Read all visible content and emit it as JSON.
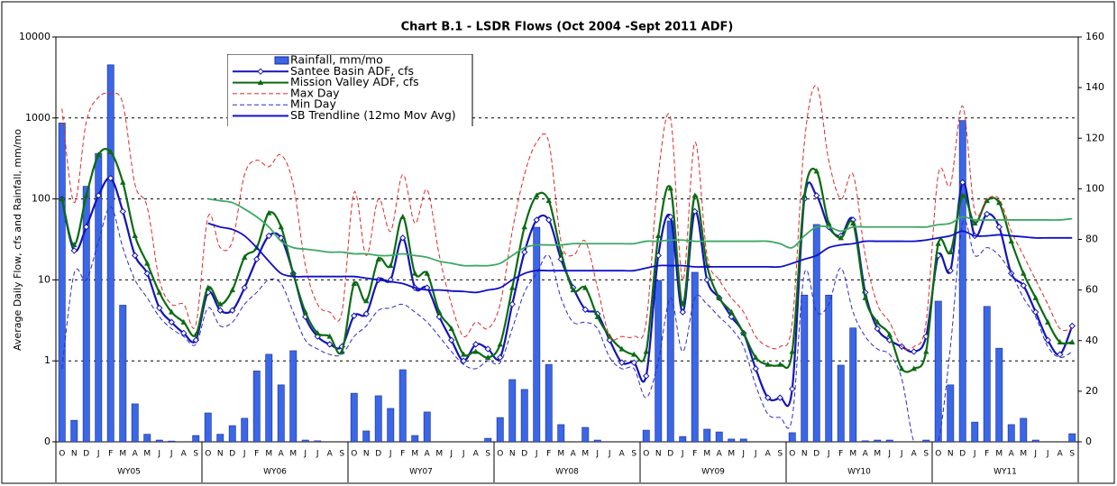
{
  "chart_data": {
    "type": "combo",
    "title": "Chart B.1 - LSDR Flows (Oct 2004 -Sept 2011 ADF)",
    "y_label": "Average Daily Flow, cfs and Rainfall, mm/mo",
    "log_y": true,
    "grid": true,
    "ylim": [
      0.1,
      10000
    ],
    "yticks": [
      {
        "value": 0.1,
        "label": "0"
      },
      1,
      10,
      100,
      1000,
      10000
    ],
    "y2lim": [
      0,
      160
    ],
    "y2ticks": [
      0,
      20,
      40,
      60,
      80,
      100,
      120,
      140,
      160
    ],
    "categories": [
      "O",
      "N",
      "D",
      "J",
      "F",
      "M",
      "A",
      "M",
      "J",
      "J",
      "A",
      "S",
      "O",
      "N",
      "D",
      "J",
      "F",
      "M",
      "A",
      "M",
      "J",
      "J",
      "A",
      "S",
      "O",
      "N",
      "D",
      "J",
      "F",
      "M",
      "A",
      "M",
      "J",
      "J",
      "A",
      "S",
      "O",
      "N",
      "D",
      "J",
      "F",
      "M",
      "A",
      "M",
      "J",
      "J",
      "A",
      "S",
      "O",
      "N",
      "D",
      "J",
      "F",
      "M",
      "A",
      "M",
      "J",
      "J",
      "A",
      "S",
      "O",
      "N",
      "D",
      "J",
      "F",
      "M",
      "A",
      "M",
      "J",
      "J",
      "A",
      "S",
      "O",
      "N",
      "D",
      "J",
      "F",
      "M",
      "A",
      "M",
      "J",
      "J",
      "A",
      "S"
    ],
    "groups": [
      "WY05",
      "WY06",
      "WY07",
      "WY08",
      "WY09",
      "WY10",
      "WY11"
    ],
    "series": [
      {
        "name": "Rainfall, mm/mo",
        "type": "bar",
        "axis": "y2",
        "color": "#3a66e8",
        "values": [
          126,
          8.5,
          101,
          114,
          149,
          54,
          15,
          3,
          0.7,
          0.3,
          0,
          2.5,
          11.4,
          3,
          6.4,
          9.3,
          28,
          34.6,
          22.5,
          36,
          0.7,
          0.4,
          0,
          0,
          19.2,
          4.3,
          18.2,
          13.2,
          28.5,
          2.5,
          11.8,
          0,
          0,
          0,
          0,
          1.4,
          9.6,
          24.6,
          20.7,
          84.8,
          30.6,
          6.8,
          0,
          5.7,
          0.7,
          0,
          0,
          0,
          4.6,
          63.8,
          87.3,
          2.1,
          67,
          5,
          3.9,
          1.1,
          1.1,
          0,
          0,
          0,
          3.6,
          58,
          85.9,
          58,
          30.3,
          45,
          0.4,
          0.7,
          0.7,
          0,
          0,
          0.7,
          55.6,
          22.5,
          127,
          7.8,
          53.5,
          37,
          6.8,
          9.3,
          0.7,
          0,
          0,
          3.2
        ]
      },
      {
        "name": "Santee Basin ADF, cfs",
        "type": "line",
        "marker": "diamond",
        "color": "#1414b8",
        "values": [
          100,
          23,
          45,
          110,
          180,
          70,
          20,
          12,
          4.5,
          3,
          2.2,
          1.8,
          7,
          4.2,
          4.2,
          8,
          18,
          35,
          33,
          12,
          3.5,
          2,
          1.6,
          1.5,
          3.6,
          3.8,
          10,
          10,
          33,
          8,
          8,
          3.5,
          1.8,
          1,
          1.6,
          1.4,
          1.1,
          5,
          22,
          55,
          55,
          18,
          8,
          4.3,
          3.8,
          1.8,
          0.95,
          0.95,
          0.65,
          20,
          60,
          4,
          70,
          10,
          6,
          3.5,
          2.2,
          0.8,
          0.35,
          0.35,
          0.45,
          100,
          110,
          45,
          35,
          55,
          7,
          2.5,
          1.8,
          1.5,
          1.3,
          2,
          20,
          13,
          160,
          35,
          65,
          45,
          12,
          8.5,
          4,
          1.8,
          1.2,
          2.7
        ]
      },
      {
        "name": "Mission Valley ADF, cfs",
        "type": "line",
        "marker": "triangle",
        "color": "#0b6b12",
        "values": [
          100,
          27,
          110,
          350,
          380,
          160,
          35,
          16,
          7,
          4,
          3,
          2.1,
          8,
          5,
          7.5,
          19,
          25,
          67,
          45,
          12,
          4,
          2.2,
          2,
          1.3,
          9,
          5.5,
          18,
          15,
          60,
          12,
          12,
          4,
          2.5,
          1.2,
          1.3,
          1.1,
          1.6,
          8,
          45,
          110,
          95,
          22,
          7.5,
          8,
          3.5,
          2,
          1.4,
          1.2,
          1.3,
          35,
          135,
          5,
          110,
          15,
          6,
          4,
          2.2,
          1.1,
          0.9,
          0.9,
          1.3,
          110,
          220,
          50,
          33,
          50,
          6,
          3,
          2.1,
          0.8,
          0.8,
          1.3,
          28,
          22,
          110,
          50,
          95,
          90,
          30,
          12,
          6,
          3,
          1.7,
          1.7
        ]
      },
      {
        "name": "Max Day",
        "type": "line",
        "dashed": true,
        "color": "#e02828",
        "values": [
          1300,
          90,
          900,
          1800,
          2000,
          1500,
          150,
          80,
          10,
          5,
          5,
          2.8,
          60,
          25,
          30,
          200,
          300,
          250,
          350,
          150,
          15,
          5,
          4,
          4,
          120,
          20,
          100,
          40,
          200,
          50,
          130,
          20,
          5,
          2,
          3,
          2.5,
          5,
          40,
          200,
          500,
          500,
          30,
          20,
          30,
          8,
          2,
          2,
          2,
          3,
          200,
          1000,
          10,
          500,
          20,
          10,
          6,
          4,
          2,
          1.5,
          1.5,
          3,
          500,
          2500,
          300,
          100,
          200,
          20,
          5,
          3,
          1.5,
          1.5,
          3,
          200,
          150,
          1400,
          70,
          100,
          100,
          40,
          20,
          10,
          5,
          2.5,
          2.5
        ]
      },
      {
        "name": "Min Day",
        "type": "line",
        "dashed": true,
        "color": "#2a2acc",
        "values": [
          0.8,
          12,
          10,
          30,
          80,
          25,
          10,
          6,
          3.5,
          2.5,
          2,
          1.6,
          4.5,
          2.7,
          3,
          5,
          7,
          10,
          9,
          4,
          1.8,
          1.4,
          1.2,
          1.2,
          2,
          2.7,
          4.2,
          4.5,
          5,
          4,
          3,
          2,
          1.3,
          0.9,
          0.8,
          1,
          0.95,
          2.5,
          7,
          12,
          20,
          6,
          3,
          3,
          2.5,
          1.1,
          0.8,
          0.8,
          0.35,
          1,
          6,
          1.3,
          6,
          5,
          3.5,
          2.5,
          1.5,
          0.5,
          0.22,
          0.2,
          0.2,
          12,
          4,
          5,
          14,
          4,
          2,
          1.4,
          1.2,
          0.6,
          0.1,
          0.1,
          0.1,
          1.5,
          50,
          20,
          25,
          20,
          12,
          6,
          3.5,
          1.5,
          1.1,
          1.3
        ]
      },
      {
        "name": "SB Trendline (12mo Mov Avg)",
        "type": "line",
        "color": "#1010c8",
        "values": [
          null,
          null,
          null,
          null,
          null,
          null,
          null,
          null,
          null,
          null,
          null,
          null,
          50,
          45,
          42,
          35,
          25,
          17,
          12,
          11,
          11,
          11,
          11,
          11,
          11,
          10.5,
          10,
          9.5,
          9,
          8,
          7.5,
          7.5,
          7.3,
          7.2,
          7,
          7.5,
          8,
          10,
          12,
          13,
          13,
          13,
          13,
          13,
          13,
          13,
          13,
          13,
          14,
          15,
          15,
          15,
          14.5,
          14.5,
          14.5,
          14.5,
          14.5,
          14.5,
          14.5,
          14.5,
          16,
          18,
          20,
          25,
          27,
          28,
          30,
          30,
          30,
          30,
          30,
          31,
          33,
          35,
          40,
          35,
          35,
          36,
          35,
          34,
          33,
          33,
          33,
          33
        ]
      },
      {
        "type": "line",
        "color": "#3ea864",
        "values": [
          null,
          null,
          null,
          null,
          null,
          null,
          null,
          null,
          null,
          null,
          null,
          null,
          100,
          95,
          90,
          75,
          60,
          45,
          30,
          25,
          24,
          23,
          22,
          22,
          21,
          21,
          20,
          20,
          21,
          20,
          19,
          17,
          16,
          15,
          15,
          15,
          16,
          20,
          25,
          27,
          27,
          27,
          28,
          28,
          28,
          28,
          28,
          28,
          30,
          30,
          31,
          31,
          30,
          30,
          30,
          30,
          30,
          30,
          30,
          28,
          25,
          35,
          45,
          45,
          40,
          45,
          45,
          45,
          45,
          45,
          45,
          45,
          48,
          50,
          60,
          55,
          55,
          55,
          55,
          55,
          55,
          55,
          55,
          57
        ]
      }
    ]
  }
}
